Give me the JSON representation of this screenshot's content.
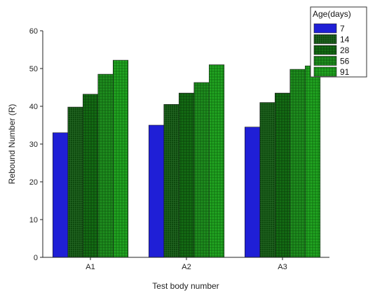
{
  "chart_data": {
    "type": "bar",
    "title": "",
    "xlabel": "Test body number",
    "ylabel": "Rebound Number (R)",
    "ylim": [
      0,
      60
    ],
    "yticks": [
      0,
      10,
      20,
      30,
      40,
      50,
      60
    ],
    "categories": [
      "A1",
      "A2",
      "A3"
    ],
    "legend_title": "Age(days)",
    "legend_position": "top-right",
    "grid": false,
    "series": [
      {
        "name": "7",
        "color": "#1f1fd6",
        "pattern": "solid",
        "values": [
          33.0,
          35.0,
          34.5
        ]
      },
      {
        "name": "14",
        "color": "#0d4a0d",
        "pattern": "dense",
        "values": [
          39.8,
          40.5,
          41.0
        ]
      },
      {
        "name": "28",
        "color": "#146e14",
        "pattern": "grid",
        "values": [
          43.2,
          43.5,
          43.5
        ]
      },
      {
        "name": "56",
        "color": "#1f8f1f",
        "pattern": "grid",
        "values": [
          48.5,
          46.3,
          49.8
        ]
      },
      {
        "name": "91",
        "color": "#22a622",
        "pattern": "grid",
        "values": [
          52.2,
          51.0,
          50.7
        ]
      }
    ]
  }
}
